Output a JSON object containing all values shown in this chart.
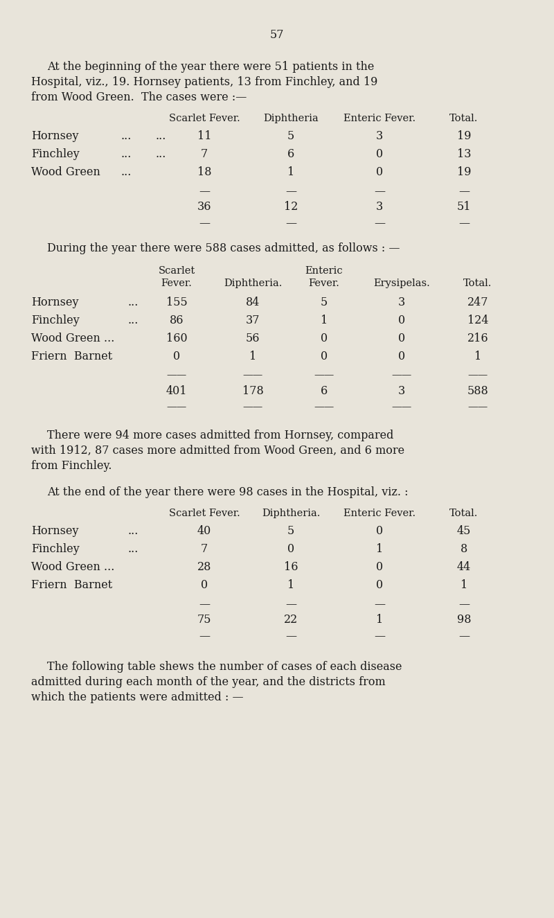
{
  "page_number": "57",
  "bg_color": "#e8e4da",
  "text_color": "#1a1a1a",
  "page_width": 8.0,
  "page_height": 13.25,
  "para1_line1": "At the beginning of the year there were 51 patients in the",
  "para1_line2": "Hospital, viz., 19. Hornsey patients, 13 from Finchley, and 19",
  "para1_line3": "from Wood Green.  The cases were :—",
  "table1_header": [
    "Scarlet Fever.",
    "Diphtheria",
    "Enteric Fever.",
    "Total."
  ],
  "table1_rows": [
    [
      "Hornsey",
      "...",
      "...",
      "11",
      "5",
      "3",
      "19"
    ],
    [
      "Finchley",
      "...",
      "...",
      "7",
      "6",
      "0",
      "13"
    ],
    [
      "Wood Green",
      "...",
      "",
      "18",
      "1",
      "0",
      "19"
    ]
  ],
  "table1_totals": [
    "36",
    "12",
    "3",
    "51"
  ],
  "para2": "During the year there were 588 cases admitted, as follows : —",
  "table2_rows": [
    [
      "Hornsey",
      "...",
      "155",
      "84",
      "5",
      "3",
      "247"
    ],
    [
      "Finchley",
      "...",
      "86",
      "37",
      "1",
      "0",
      "124"
    ],
    [
      "Wood Green ...",
      "",
      "160",
      "56",
      "0",
      "0",
      "216"
    ],
    [
      "Friern  Barnet",
      "",
      "0",
      "1",
      "0",
      "0",
      "1"
    ]
  ],
  "table2_totals": [
    "401",
    "178",
    "6",
    "3",
    "588"
  ],
  "para3_line1": "There were 94 more cases admitted from Hornsey, compared",
  "para3_line2": "with 1912, 87 cases more admitted from Wood Green, and 6 more",
  "para3_line3": "from Finchley.",
  "para4": "At the end of the year there were 98 cases in the Hospital, viz. :",
  "table3_header": [
    "Scarlet Fever.",
    "Diphtheria.",
    "Enteric Fever.",
    "Total."
  ],
  "table3_rows": [
    [
      "Hornsey",
      "...",
      "40",
      "5",
      "0",
      "45"
    ],
    [
      "Finchley",
      "...",
      "7",
      "0",
      "1",
      "8"
    ],
    [
      "Wood Green ...",
      "",
      "28",
      "16",
      "0",
      "44"
    ],
    [
      "Friern  Barnet",
      "",
      "0",
      "1",
      "0",
      "1"
    ]
  ],
  "table3_totals": [
    "75",
    "22",
    "1",
    "98"
  ],
  "para5_line1": "The following table shews the number of cases of each disease",
  "para5_line2": "admitted during each month of the year, and the districts from",
  "para5_line3": "which the patients were admitted : —",
  "font_size": 11.5,
  "small_font": 10.5
}
